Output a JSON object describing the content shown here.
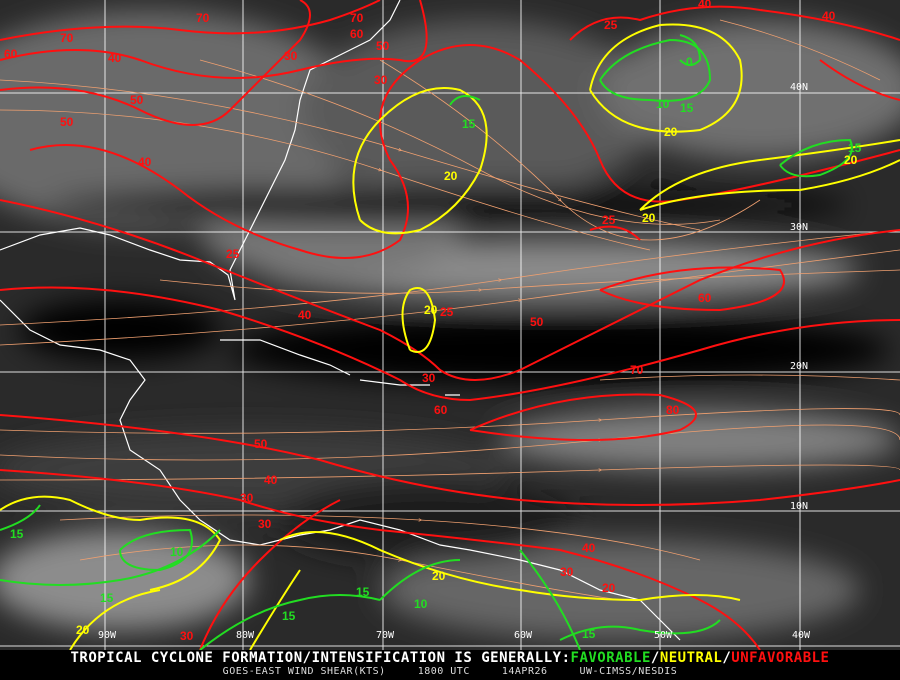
{
  "colors": {
    "favorable": "#22dd22",
    "neutral": "#ffff00",
    "unfavorable": "#ff1010",
    "streamlines": "#f0a070",
    "grid": "#ffffff",
    "coast": "#ffffff"
  },
  "longitude_labels": [
    "90W",
    "80W",
    "70W",
    "60W",
    "50W",
    "40W"
  ],
  "latitude_labels": [
    "40N",
    "30N",
    "20N",
    "10N"
  ],
  "red_labels": [
    "70",
    "70",
    "60",
    "60",
    "70",
    "50",
    "30",
    "40",
    "30",
    "50",
    "50",
    "40",
    "25",
    "25",
    "40",
    "25",
    "50",
    "60",
    "70",
    "30",
    "60",
    "80",
    "50",
    "40",
    "30",
    "30",
    "40",
    "30",
    "20",
    "30",
    "25",
    "40",
    "40"
  ],
  "yellow_labels": [
    "20",
    "20",
    "20",
    "20",
    "20",
    "20",
    "20"
  ],
  "green_labels": [
    "15",
    "10",
    "15",
    "0",
    "15",
    "15",
    "10",
    "15",
    "15",
    "15",
    "10",
    "15"
  ],
  "footer": {
    "headline": "TROPICAL CYCLONE FORMATION/INTENSIFICATION IS GENERALLY:",
    "favorable": "FAVORABLE",
    "sep1": "/",
    "neutral": "NEUTRAL",
    "sep2": "/",
    "unfavorable": "UNFAVORABLE",
    "product": "GOES-EAST WIND SHEAR(KTS)",
    "time": "1800 UTC",
    "date": "14APR26",
    "source": "UW-CIMSS/NESDIS"
  }
}
